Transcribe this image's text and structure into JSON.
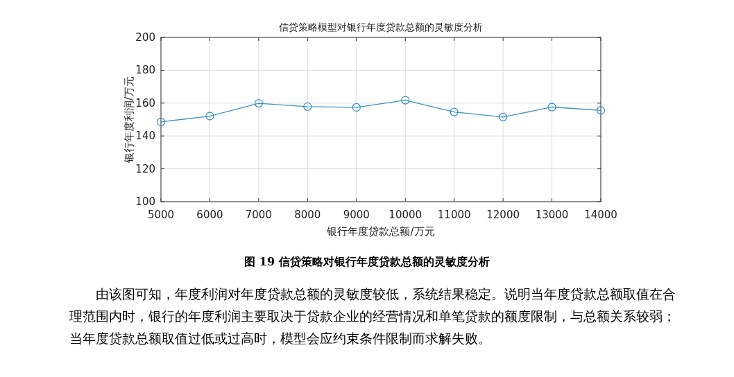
{
  "chart_data": {
    "type": "line",
    "title": "信贷策略模型对银行年度贷款总额的灵敏度分析",
    "xlabel": "银行年度贷款总额/万元",
    "ylabel": "银行年度利润/万元",
    "x": [
      5000,
      6000,
      7000,
      8000,
      9000,
      10000,
      11000,
      12000,
      13000,
      14000
    ],
    "series": [
      {
        "color": "#3a94c4",
        "values": [
          148.6,
          152.1,
          159.9,
          157.9,
          157.4,
          161.8,
          154.6,
          151.5,
          157.6,
          155.6
        ]
      }
    ],
    "xlim": [
      5000,
      14000
    ],
    "xticks": [
      5000,
      6000,
      7000,
      8000,
      9000,
      10000,
      11000,
      12000,
      13000,
      14000
    ],
    "ylim": [
      100,
      200
    ],
    "yticks": [
      100,
      120,
      140,
      160,
      180,
      200
    ],
    "grid": true,
    "marker": "circle",
    "line_style": "solid",
    "annotations": [
      "图 19 信贷策略对银行年度贷款总额的灵敏度分析",
      "由该图可知，年度利润对年度贷款总额的灵敏度较低，系统结果稳定。说明当年度贷款总额取值在合理范围内时，银行的年度利润主要取决于贷款企业的经营情况和单笔贷款的额度限制，与总额关系较弱；当年度贷款总额取值过低或过高时，模型会应约束条件限制而求解失败。"
    ]
  }
}
